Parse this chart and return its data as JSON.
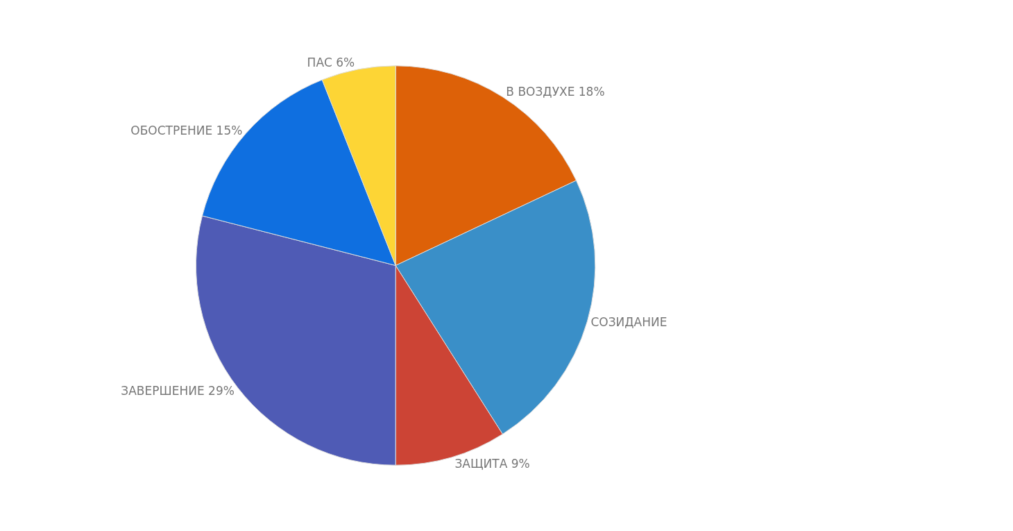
{
  "chart_data": {
    "type": "pie",
    "categories": [
      "В ВОЗДУХЕ",
      "СОЗИДАНИЕ",
      "ЗАЩИТА",
      "ЗАВЕРШЕНИЕ",
      "ОБОСТРЕНИЕ",
      "ПАС"
    ],
    "values": [
      18,
      23,
      9,
      29,
      15,
      6
    ],
    "value_labels": [
      "18%",
      null,
      "9%",
      "29%",
      "15%",
      "6%"
    ],
    "colors": [
      "#dd6108",
      "#3a8fc8",
      "#cc4435",
      "#4f5bb5",
      "#0f6fe0",
      "#fdd535"
    ],
    "legend": false
  }
}
